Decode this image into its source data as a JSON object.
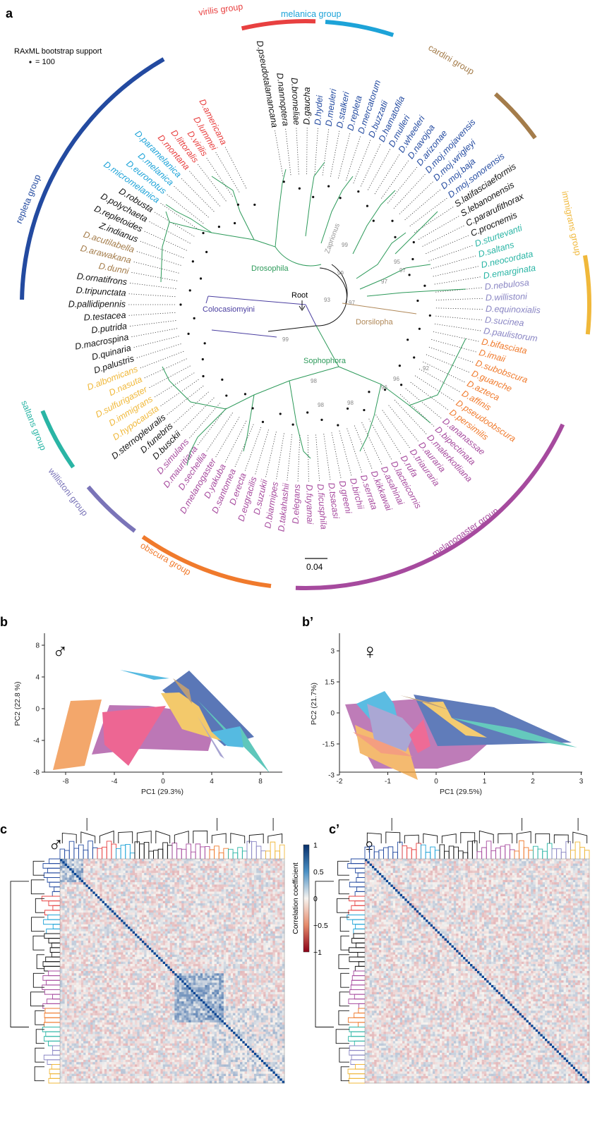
{
  "figure": {
    "panels": {
      "a": "a",
      "b": "b",
      "b2": "b’",
      "c": "c",
      "c2": "c’"
    },
    "legend": {
      "title": "RAxML bootstrap support",
      "dot_label": "= 100"
    },
    "scale_bar": "0.04",
    "root_label": "Root",
    "clade_labels": {
      "drosophila": "Drosophila",
      "zaprionus": "Zaprionus",
      "colocasiomyini": "Colocasiomyini",
      "sophophora": "Sophophora",
      "dorsilopha": "Dorsilopha"
    },
    "bootstrap": [
      {
        "id": "b1",
        "v": "99"
      },
      {
        "id": "b2",
        "v": "93"
      },
      {
        "id": "b3",
        "v": "99"
      },
      {
        "id": "b4",
        "v": "97"
      },
      {
        "id": "b5",
        "v": "95"
      },
      {
        "id": "b6",
        "v": "97"
      },
      {
        "id": "b7",
        "v": "97"
      },
      {
        "id": "b8",
        "v": "99"
      },
      {
        "id": "b9",
        "v": "98"
      },
      {
        "id": "b10",
        "v": "98"
      },
      {
        "id": "b11",
        "v": "98"
      },
      {
        "id": "b12",
        "v": "96"
      },
      {
        "id": "b13",
        "v": "96"
      },
      {
        "id": "b14",
        "v": "92"
      }
    ],
    "groups": [
      {
        "name": "virilis group",
        "color": "#e84040"
      },
      {
        "name": "melanica group",
        "color": "#1da3d8"
      },
      {
        "name": "cardini group",
        "color": "#a47c4a"
      },
      {
        "name": "immigrans group",
        "color": "#f0b83a"
      },
      {
        "name": "melanogaster group",
        "color": "#a64a9e"
      },
      {
        "name": "obscura group",
        "color": "#f07a2c"
      },
      {
        "name": "willistoni group",
        "color": "#7a74b8"
      },
      {
        "name": "saltans group",
        "color": "#2ab5a5"
      },
      {
        "name": "repleta group",
        "color": "#234aa0"
      }
    ],
    "species": [
      {
        "n": "D.pseudotalamancana",
        "c": "#111111"
      },
      {
        "n": "D.nannoptera",
        "c": "#111111"
      },
      {
        "n": "D.bromeliae",
        "c": "#111111"
      },
      {
        "n": "D.gaucha",
        "c": "#111111"
      },
      {
        "n": "D.hydei",
        "c": "#234aa0"
      },
      {
        "n": "D.meuleri",
        "c": "#234aa0"
      },
      {
        "n": "D.stalkeri",
        "c": "#234aa0"
      },
      {
        "n": "D.repleta",
        "c": "#234aa0"
      },
      {
        "n": "D.mercatorum",
        "c": "#234aa0"
      },
      {
        "n": "D.buzzatii",
        "c": "#234aa0"
      },
      {
        "n": "D.hamatofila",
        "c": "#234aa0"
      },
      {
        "n": "D.mulleri",
        "c": "#234aa0"
      },
      {
        "n": "D.wheeleri",
        "c": "#234aa0"
      },
      {
        "n": "D.navojoa",
        "c": "#234aa0"
      },
      {
        "n": "D.arizonae",
        "c": "#234aa0"
      },
      {
        "n": "D.moj.mojavensis",
        "c": "#234aa0"
      },
      {
        "n": "D.moj.wrigleyi",
        "c": "#234aa0"
      },
      {
        "n": "D.moj.baja",
        "c": "#234aa0"
      },
      {
        "n": "D.moj.sonorensis",
        "c": "#234aa0"
      },
      {
        "n": "S.latifasciaeformis",
        "c": "#111111"
      },
      {
        "n": "S.lebanonensis",
        "c": "#111111"
      },
      {
        "n": "C.pararufithorax",
        "c": "#111111"
      },
      {
        "n": "C.procnemis",
        "c": "#111111"
      },
      {
        "n": "D.sturtevanti",
        "c": "#2ab5a5"
      },
      {
        "n": "D.saltans",
        "c": "#2ab5a5"
      },
      {
        "n": "D.neocordata",
        "c": "#2ab5a5"
      },
      {
        "n": "D.emarginata",
        "c": "#2ab5a5"
      },
      {
        "n": "D.nebulosa",
        "c": "#8a86c4"
      },
      {
        "n": "D.willistoni",
        "c": "#8a86c4"
      },
      {
        "n": "D.equinoxialis",
        "c": "#8a86c4"
      },
      {
        "n": "D.sucinea",
        "c": "#8a86c4"
      },
      {
        "n": "D.paulistorum",
        "c": "#8a86c4"
      },
      {
        "n": "D.bifasciata",
        "c": "#f07a2c"
      },
      {
        "n": "D.imaii",
        "c": "#f07a2c"
      },
      {
        "n": "D.subobscura",
        "c": "#f07a2c"
      },
      {
        "n": "D.guanche",
        "c": "#f07a2c"
      },
      {
        "n": "D.azteca",
        "c": "#f07a2c"
      },
      {
        "n": "D.affinis",
        "c": "#f07a2c"
      },
      {
        "n": "D.pseudoobscura",
        "c": "#f07a2c"
      },
      {
        "n": "D.persimilis",
        "c": "#f07a2c"
      },
      {
        "n": "D.ananassae",
        "c": "#a64a9e"
      },
      {
        "n": "D.bipectinata",
        "c": "#a64a9e"
      },
      {
        "n": "D.malerkotliana",
        "c": "#a64a9e"
      },
      {
        "n": "D.auraria",
        "c": "#a64a9e"
      },
      {
        "n": "D.triauraria",
        "c": "#a64a9e"
      },
      {
        "n": "D.rufa",
        "c": "#a64a9e"
      },
      {
        "n": "D.lacteicornis",
        "c": "#a64a9e"
      },
      {
        "n": "D.asahinai",
        "c": "#a64a9e"
      },
      {
        "n": "D.kikkawai",
        "c": "#a64a9e"
      },
      {
        "n": "D.serrata",
        "c": "#a64a9e"
      },
      {
        "n": "D.birchii",
        "c": "#a64a9e"
      },
      {
        "n": "D.greeni",
        "c": "#a64a9e"
      },
      {
        "n": "D.tsacasi",
        "c": "#a64a9e"
      },
      {
        "n": "D.ficusphila",
        "c": "#a64a9e"
      },
      {
        "n": "D.fuyamai",
        "c": "#a64a9e"
      },
      {
        "n": "D.elegans",
        "c": "#a64a9e"
      },
      {
        "n": "D.takahashii",
        "c": "#a64a9e"
      },
      {
        "n": "D.biarmipes",
        "c": "#a64a9e"
      },
      {
        "n": "D.suzukii",
        "c": "#a64a9e"
      },
      {
        "n": "D.eugracilis",
        "c": "#a64a9e"
      },
      {
        "n": "D.erecta",
        "c": "#a64a9e"
      },
      {
        "n": "D.santomea",
        "c": "#a64a9e"
      },
      {
        "n": "D.yakuba",
        "c": "#a64a9e"
      },
      {
        "n": "D.melanogaster",
        "c": "#a64a9e"
      },
      {
        "n": "D.sechellia",
        "c": "#a64a9e"
      },
      {
        "n": "D.mauritiana",
        "c": "#a64a9e"
      },
      {
        "n": "D.simulans",
        "c": "#a64a9e"
      },
      {
        "n": "D.busckii",
        "c": "#111111"
      },
      {
        "n": "D.funebris",
        "c": "#111111"
      },
      {
        "n": "D.sternopleuralis",
        "c": "#111111"
      },
      {
        "n": "D.hypocausta",
        "c": "#f0b83a"
      },
      {
        "n": "D.immigrans",
        "c": "#f0b83a"
      },
      {
        "n": "D.sulfurigaster",
        "c": "#f0b83a"
      },
      {
        "n": "D.nasuta",
        "c": "#f0b83a"
      },
      {
        "n": "D.albomicans",
        "c": "#f0b83a"
      },
      {
        "n": "D.palustris",
        "c": "#111111"
      },
      {
        "n": "D.quinaria",
        "c": "#111111"
      },
      {
        "n": "D.macrospina",
        "c": "#111111"
      },
      {
        "n": "D.putrida",
        "c": "#111111"
      },
      {
        "n": "D.testacea",
        "c": "#111111"
      },
      {
        "n": "D.pallidipennis",
        "c": "#111111"
      },
      {
        "n": "D.tripunctata",
        "c": "#111111"
      },
      {
        "n": "D.ornatifrons",
        "c": "#111111"
      },
      {
        "n": "D.dunni",
        "c": "#a47c4a"
      },
      {
        "n": "D.arawakana",
        "c": "#a47c4a"
      },
      {
        "n": "D.acutilabella",
        "c": "#a47c4a"
      },
      {
        "n": "Z.indianus",
        "c": "#111111"
      },
      {
        "n": "D.repletoides",
        "c": "#111111"
      },
      {
        "n": "D.polychaeta",
        "c": "#111111"
      },
      {
        "n": "D.robusta",
        "c": "#111111"
      },
      {
        "n": "D.micromelanica",
        "c": "#1da3d8"
      },
      {
        "n": "D.euronotus",
        "c": "#1da3d8"
      },
      {
        "n": "D.melanica",
        "c": "#1da3d8"
      },
      {
        "n": "D.paramelanica",
        "c": "#1da3d8"
      },
      {
        "n": "D.montana",
        "c": "#e84040"
      },
      {
        "n": "D.littoralis",
        "c": "#e84040"
      },
      {
        "n": "D.virilis",
        "c": "#e84040"
      },
      {
        "n": "D.lummei",
        "c": "#e84040"
      },
      {
        "n": "D.americana",
        "c": "#e84040"
      }
    ]
  },
  "pca_male": {
    "symbol": "♂",
    "xlabel": "PC1 (29.3%)",
    "ylabel": "PC2 (22.8 %)",
    "xticks": [
      "-8",
      "-4",
      "0",
      "4",
      "8"
    ],
    "yticks": [
      "8",
      "4",
      "0",
      "-4",
      "-8"
    ]
  },
  "pca_female": {
    "symbol": "♀",
    "xlabel": "PC1 (29.5%)",
    "ylabel": "PC2 (21.7%)",
    "xticks": [
      "-2",
      "-1",
      "0",
      "1",
      "2",
      "3"
    ],
    "yticks": [
      "3",
      "1.5",
      "0",
      "-1.5",
      "-3"
    ]
  },
  "heatmap": {
    "male_symbol": "♂",
    "female_symbol": "♀",
    "colorbar_title": "Correlation coefficient",
    "colorbar_ticks": [
      "1",
      "0.5",
      "0",
      "−0.5",
      "−1"
    ]
  }
}
